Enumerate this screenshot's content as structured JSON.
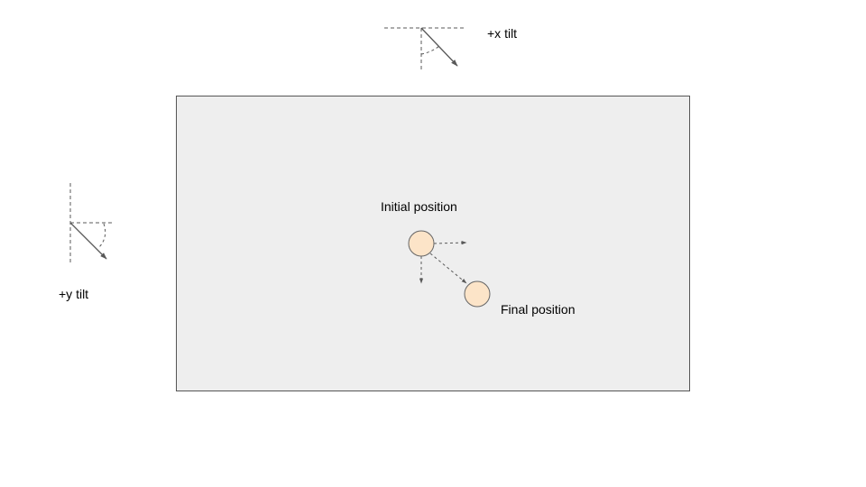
{
  "labels": {
    "x_tilt": "+x tilt",
    "y_tilt": "+y tilt",
    "initial_position": "Initial position",
    "final_position": "Final position"
  },
  "colors": {
    "board_fill": "#eeeeee",
    "board_stroke": "#555555",
    "ball_fill": "#fce4c8",
    "ball_stroke": "#666666",
    "line": "#595959"
  }
}
